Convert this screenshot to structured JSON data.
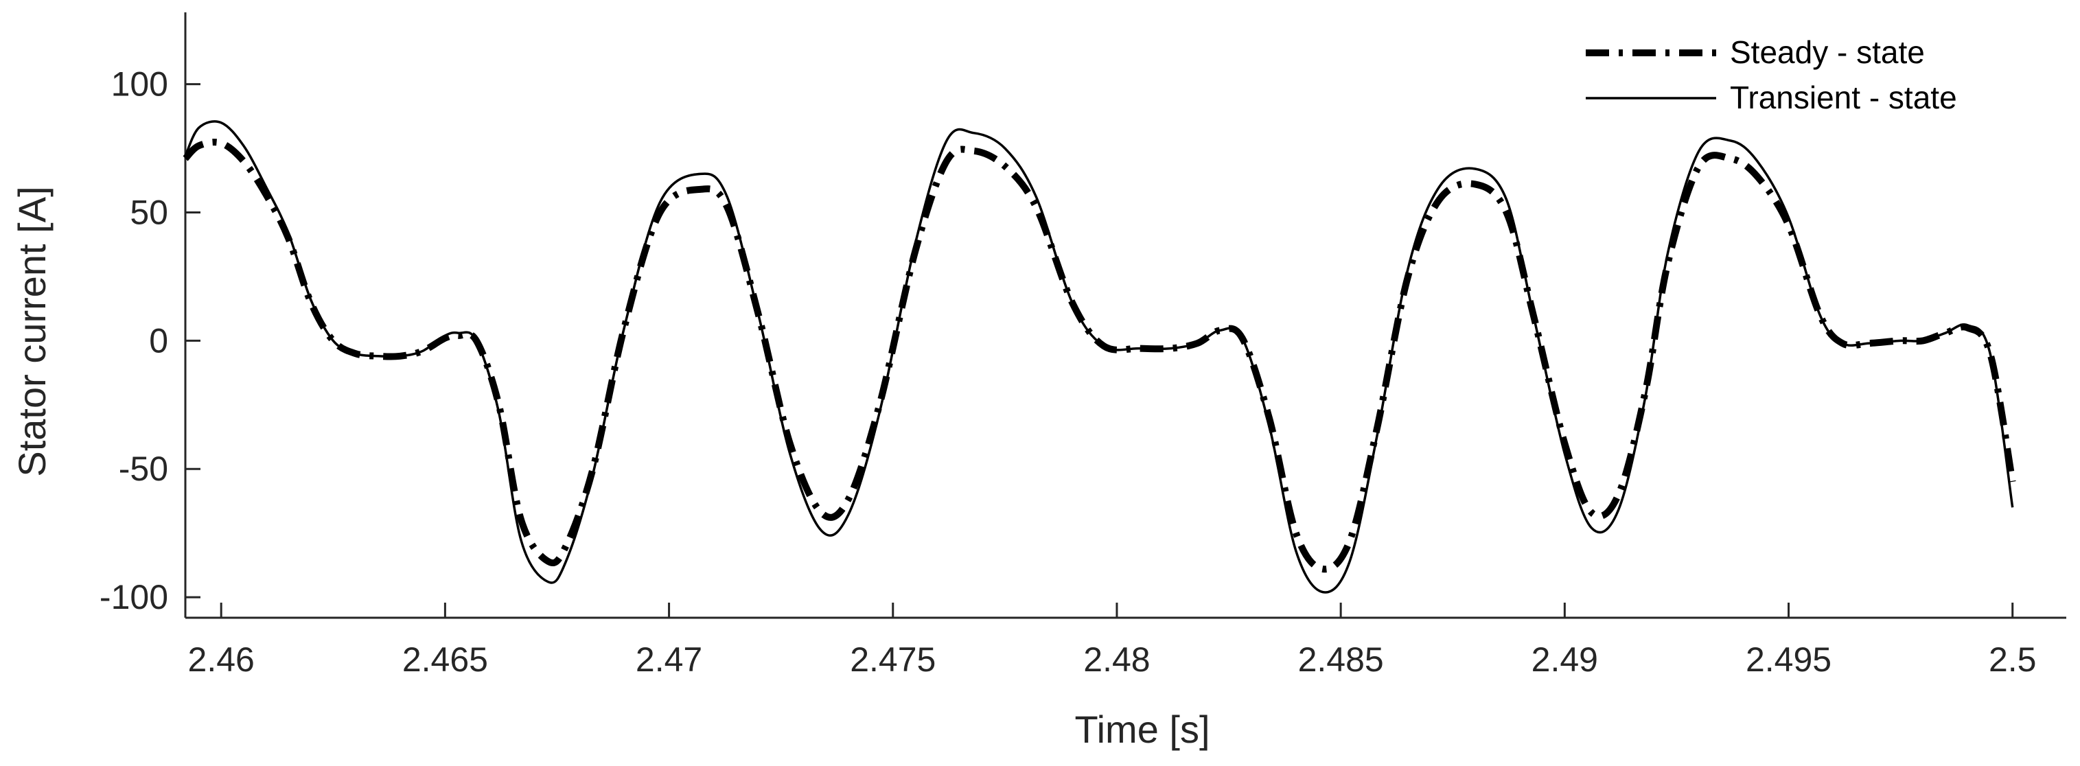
{
  "chart_data": {
    "type": "line",
    "title": "",
    "xlabel": "Time [s]",
    "ylabel": "Stator current [A]",
    "xlim": [
      2.4592,
      2.5012
    ],
    "ylim": [
      -108,
      128
    ],
    "xticks": [
      2.46,
      2.465,
      2.47,
      2.475,
      2.48,
      2.485,
      2.49,
      2.495,
      2.5
    ],
    "xtick_labels": [
      "2.46",
      "2.465",
      "2.47",
      "2.475",
      "2.48",
      "2.485",
      "2.49",
      "2.495",
      "2.5"
    ],
    "yticks": [
      -100,
      -50,
      0,
      50,
      100
    ],
    "ytick_labels": [
      "-100",
      "-50",
      "0",
      "50",
      "100"
    ],
    "grid": false,
    "legend_position": "top-right",
    "series_style": {
      "Steady - state": {
        "color": "#000000",
        "dash": "dash-dot",
        "weight": "thick"
      },
      "Transient - state": {
        "color": "#000000",
        "dash": "solid",
        "weight": "thin"
      }
    },
    "series": [
      {
        "name": "Steady - state",
        "x": [
          2.4592,
          2.4595,
          2.46,
          2.4605,
          2.461,
          2.4615,
          2.462,
          2.4625,
          2.463,
          2.4635,
          2.464,
          2.4645,
          2.465,
          2.4653,
          2.4657,
          2.4662,
          2.4667,
          2.4673,
          2.4677,
          2.4683,
          2.469,
          2.4698,
          2.4707,
          2.4713,
          2.472,
          2.4727,
          2.4734,
          2.474,
          2.4747,
          2.4755,
          2.4762,
          2.4768,
          2.4775,
          2.4782,
          2.479,
          2.4797,
          2.4805,
          2.4812,
          2.4818,
          2.4823,
          2.4828,
          2.4834,
          2.484,
          2.4846,
          2.4852,
          2.4858,
          2.4865,
          2.4872,
          2.488,
          2.4887,
          2.4893,
          2.49,
          2.4906,
          2.4912,
          2.4918,
          2.4923,
          2.493,
          2.4937,
          2.4943,
          2.495,
          2.4957,
          2.4962,
          2.4968,
          2.4975,
          2.498,
          2.4985,
          2.499,
          2.4995,
          2.5
        ],
        "y": [
          71,
          76,
          77,
          70,
          57,
          40,
          15,
          0,
          -5,
          -6,
          -6,
          -4,
          1,
          2,
          0,
          -25,
          -70,
          -86,
          -80,
          -50,
          5,
          50,
          59,
          52,
          10,
          -40,
          -67,
          -62,
          -25,
          35,
          70,
          74,
          68,
          52,
          15,
          -2,
          -3,
          -3,
          -1,
          4,
          1,
          -30,
          -75,
          -89,
          -78,
          -35,
          25,
          55,
          61,
          50,
          10,
          -40,
          -67,
          -60,
          -20,
          30,
          68,
          71,
          64,
          45,
          10,
          -1,
          -1,
          0,
          0,
          3,
          5,
          -5,
          -55
        ]
      },
      {
        "name": "Transient - state",
        "x": [
          2.4592,
          2.4595,
          2.46,
          2.4605,
          2.461,
          2.4615,
          2.462,
          2.4625,
          2.463,
          2.4635,
          2.464,
          2.4645,
          2.465,
          2.4653,
          2.4657,
          2.4662,
          2.4667,
          2.4673,
          2.4677,
          2.4683,
          2.469,
          2.4698,
          2.4707,
          2.4713,
          2.472,
          2.4727,
          2.4734,
          2.474,
          2.4747,
          2.4755,
          2.4762,
          2.4768,
          2.4775,
          2.4782,
          2.479,
          2.4797,
          2.4805,
          2.4812,
          2.4818,
          2.4823,
          2.4828,
          2.4834,
          2.484,
          2.4846,
          2.4852,
          2.4858,
          2.4865,
          2.4872,
          2.488,
          2.4887,
          2.4893,
          2.49,
          2.4906,
          2.4912,
          2.4918,
          2.4923,
          2.493,
          2.4937,
          2.4943,
          2.495,
          2.4957,
          2.4962,
          2.4968,
          2.4975,
          2.498,
          2.4985,
          2.499,
          2.4995,
          2.5
        ],
        "y": [
          72,
          83,
          85,
          76,
          60,
          42,
          16,
          0,
          -5,
          -6,
          -6,
          -4,
          2,
          3,
          0,
          -28,
          -78,
          -94,
          -86,
          -52,
          5,
          54,
          65,
          56,
          10,
          -44,
          -74,
          -68,
          -28,
          38,
          78,
          81,
          75,
          56,
          15,
          -2,
          -3,
          -3,
          -1,
          4,
          1,
          -33,
          -82,
          -98,
          -86,
          -38,
          28,
          60,
          67,
          55,
          10,
          -44,
          -73,
          -66,
          -22,
          34,
          74,
          78,
          70,
          48,
          10,
          -1,
          -1,
          0,
          0,
          3,
          6,
          -5,
          -65
        ]
      }
    ]
  }
}
